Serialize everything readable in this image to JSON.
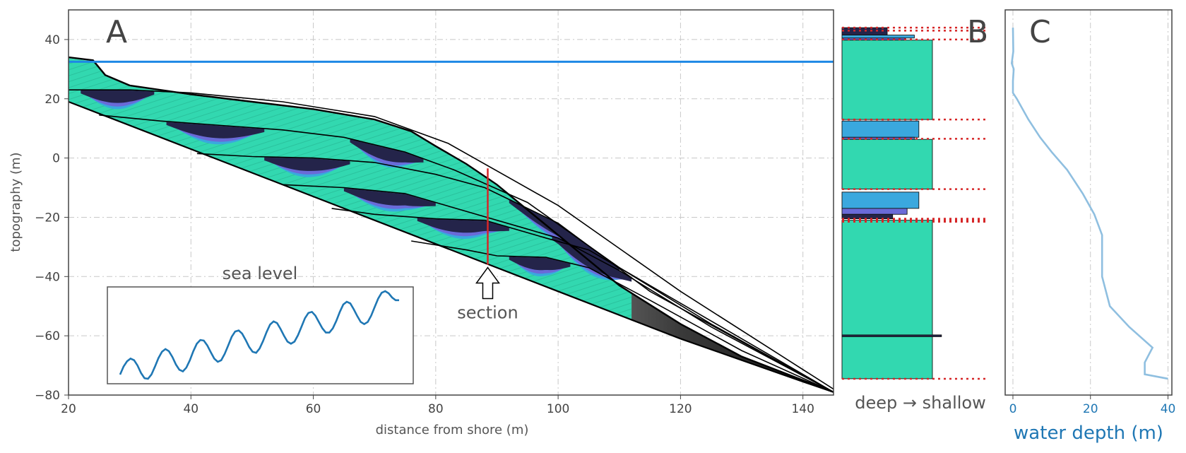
{
  "colors": {
    "facies_shallow": "#32d8b0",
    "facies_mid": "#3aa8de",
    "facies_deep": "#6a6ad8",
    "facies_deepest": "#24244a",
    "basement": "#555555",
    "sea_level_line": "#1e88e5",
    "section_line": "#d62728",
    "water_depth_line": "#8fbfe0",
    "inset_curve": "#1f77b4"
  },
  "chart_data": [
    {
      "panel": "A",
      "type": "area",
      "panel_label": "A",
      "xlabel": "distance from shore (m)",
      "ylabel": "topography (m)",
      "xlim": [
        20,
        145
      ],
      "ylim": [
        -80,
        50
      ],
      "xticks": [
        20,
        40,
        60,
        80,
        100,
        120,
        140
      ],
      "yticks": [
        -80,
        -60,
        -40,
        -20,
        0,
        20,
        40
      ],
      "grid": true,
      "sea_level": 32.5,
      "section_x": 88.5,
      "section_range": [
        -36,
        -3.5
      ],
      "section_label": "section",
      "top_surface": {
        "x": [
          20,
          24,
          26,
          30,
          40,
          50,
          60,
          70,
          76,
          80,
          85,
          90,
          100,
          110,
          120,
          130,
          140,
          145
        ],
        "y": [
          34,
          33,
          28,
          24.5,
          21.5,
          19,
          16.5,
          13,
          9,
          4,
          -2,
          -9,
          -26,
          -43,
          -56,
          -67,
          -75,
          -79
        ]
      },
      "base_surface": {
        "x": [
          20,
          40,
          60,
          80,
          100,
          120,
          140,
          145
        ],
        "y": [
          19,
          3,
          -13,
          -29,
          -45,
          -61,
          -75.5,
          -79
        ]
      },
      "horizons": [
        {
          "x": [
            20,
            30,
            40,
            55,
            70,
            82,
            100,
            120,
            145
          ],
          "y": [
            23,
            23,
            22,
            19,
            14,
            5,
            -16,
            -45,
            -78
          ]
        },
        {
          "x": [
            25,
            35,
            45,
            55,
            65,
            75,
            83,
            95,
            110,
            125,
            145
          ],
          "y": [
            14.5,
            12.5,
            11,
            9.5,
            7,
            2,
            -4,
            -15,
            -37,
            -56,
            -79
          ]
        },
        {
          "x": [
            41,
            50,
            60,
            70,
            80,
            88,
            100,
            115,
            130,
            145
          ],
          "y": [
            1.5,
            0.5,
            0,
            -1.5,
            -5.5,
            -10,
            -22,
            -45,
            -62,
            -79
          ]
        },
        {
          "x": [
            55,
            65,
            75,
            85,
            95,
            100,
            110,
            125,
            145
          ],
          "y": [
            -9,
            -10,
            -12,
            -18,
            -24,
            -27,
            -38,
            -57,
            -79
          ]
        },
        {
          "x": [
            63,
            70,
            80,
            88,
            98,
            105,
            115,
            130,
            145
          ],
          "y": [
            -17,
            -19,
            -20.5,
            -21,
            -27,
            -31,
            -43,
            -61,
            -79
          ]
        },
        {
          "x": [
            76,
            85,
            90,
            98,
            105,
            115,
            130,
            145
          ],
          "y": [
            -28,
            -31,
            -33,
            -33.5,
            -37,
            -48,
            -65,
            -79
          ]
        }
      ],
      "inset": {
        "title": "sea level",
        "x": [
          0,
          1,
          2,
          3,
          4,
          5,
          6,
          7,
          8,
          9,
          10,
          11,
          12,
          13,
          14,
          15,
          16,
          17,
          18,
          19,
          20,
          21,
          22,
          23,
          24,
          25,
          26,
          27,
          28,
          29,
          30,
          31,
          32,
          33,
          34,
          35,
          36,
          37,
          38,
          39,
          40,
          41,
          42,
          43,
          44,
          45,
          46,
          47,
          48,
          49,
          50,
          51,
          52,
          53,
          54,
          55,
          56,
          57,
          58,
          59,
          60,
          61,
          62,
          63,
          64,
          65,
          66,
          67,
          68,
          69,
          70,
          71,
          72,
          73,
          74,
          75,
          76,
          77,
          78,
          79,
          80
        ],
        "y": [
          -0.05,
          0.1,
          0.2,
          0.25,
          0.22,
          0.12,
          -0.02,
          -0.12,
          -0.13,
          -0.05,
          0.1,
          0.26,
          0.38,
          0.43,
          0.39,
          0.28,
          0.14,
          0.04,
          0.01,
          0.08,
          0.22,
          0.39,
          0.53,
          0.6,
          0.59,
          0.5,
          0.37,
          0.25,
          0.19,
          0.22,
          0.34,
          0.5,
          0.66,
          0.76,
          0.78,
          0.72,
          0.6,
          0.47,
          0.38,
          0.36,
          0.44,
          0.58,
          0.75,
          0.89,
          0.95,
          0.92,
          0.81,
          0.68,
          0.57,
          0.53,
          0.57,
          0.69,
          0.85,
          1.01,
          1.11,
          1.13,
          1.06,
          0.94,
          0.82,
          0.74,
          0.74,
          0.82,
          0.96,
          1.13,
          1.27,
          1.32,
          1.29,
          1.18,
          1.05,
          0.94,
          0.9,
          0.94,
          1.06,
          1.22,
          1.38,
          1.49,
          1.52,
          1.48,
          1.4,
          1.35,
          1.35
        ]
      }
    },
    {
      "panel": "B",
      "type": "bar",
      "panel_label": "B",
      "xlabel": "deep → shallow",
      "ylim": [
        -80,
        50
      ],
      "note_units": "elevation m, same scale as A",
      "beds": [
        {
          "bottom": 41.5,
          "top": 44,
          "facies": "deepest",
          "level": 0.5
        },
        {
          "bottom": 40.5,
          "top": 41.5,
          "facies": "mid",
          "level": 0.8
        },
        {
          "bottom": 39.8,
          "top": 40.5,
          "facies": "deep",
          "level": 0.7
        },
        {
          "bottom": 13,
          "top": 39.8,
          "facies": "shallow",
          "level": 1.0
        },
        {
          "bottom": 7,
          "top": 12.5,
          "facies": "mid",
          "level": 0.85
        },
        {
          "bottom": 6.3,
          "top": 7,
          "facies": "deep",
          "level": 0.8
        },
        {
          "bottom": -10.5,
          "top": 6.3,
          "facies": "shallow",
          "level": 1.0
        },
        {
          "bottom": -17,
          "top": -11.5,
          "facies": "mid",
          "level": 0.85
        },
        {
          "bottom": -19,
          "top": -17,
          "facies": "deep",
          "level": 0.72
        },
        {
          "bottom": -20.5,
          "top": -19,
          "facies": "deepest",
          "level": 0.56
        },
        {
          "bottom": -60,
          "top": -21,
          "facies": "shallow",
          "level": 1.0
        },
        {
          "bottom": -60.3,
          "top": -59.7,
          "facies": "deepest",
          "level": 1.1
        },
        {
          "bottom": -74.5,
          "top": -60.3,
          "facies": "shallow",
          "level": 1.0
        }
      ],
      "dotted_levels": [
        44,
        43,
        40,
        13,
        6.5,
        -10.5,
        -20.5,
        -21,
        -21.5,
        -74.5
      ]
    },
    {
      "panel": "C",
      "type": "line",
      "panel_label": "C",
      "xlabel": "water depth (m)",
      "xlim": [
        -2,
        41
      ],
      "xticks": [
        0,
        20,
        40
      ],
      "grid": true,
      "points": [
        {
          "depth": 0,
          "elev": 44
        },
        {
          "depth": 0.1,
          "elev": 36
        },
        {
          "depth": -0.3,
          "elev": 32
        },
        {
          "depth": 0.2,
          "elev": 30
        },
        {
          "depth": 0,
          "elev": 26
        },
        {
          "depth": 0,
          "elev": 22
        },
        {
          "depth": 1,
          "elev": 20
        },
        {
          "depth": 4,
          "elev": 13
        },
        {
          "depth": 7,
          "elev": 7
        },
        {
          "depth": 10,
          "elev": 2
        },
        {
          "depth": 14,
          "elev": -4
        },
        {
          "depth": 18,
          "elev": -12
        },
        {
          "depth": 21,
          "elev": -19
        },
        {
          "depth": 23,
          "elev": -26
        },
        {
          "depth": 23,
          "elev": -40
        },
        {
          "depth": 25,
          "elev": -50
        },
        {
          "depth": 30,
          "elev": -57
        },
        {
          "depth": 36,
          "elev": -64
        },
        {
          "depth": 34,
          "elev": -69
        },
        {
          "depth": 34,
          "elev": -73
        },
        {
          "depth": 40,
          "elev": -74.5
        }
      ]
    }
  ]
}
